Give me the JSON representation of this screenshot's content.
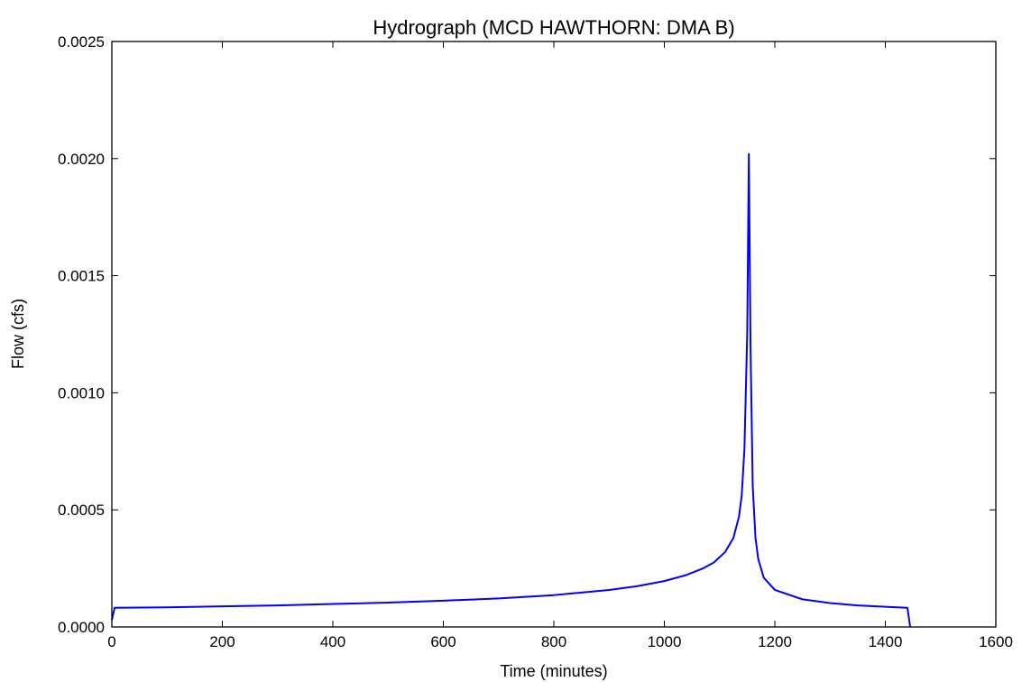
{
  "chart_data": {
    "type": "line",
    "title": "Hydrograph (MCD HAWTHORN: DMA B)",
    "xlabel": "Time (minutes)",
    "ylabel": "Flow (cfs)",
    "xlim": [
      0,
      1600
    ],
    "ylim": [
      0,
      0.0025
    ],
    "xticks": [
      0,
      200,
      400,
      600,
      800,
      1000,
      1200,
      1400,
      1600
    ],
    "yticks": [
      0.0,
      0.0005,
      0.001,
      0.0015,
      0.002,
      0.0025
    ],
    "xtick_labels": [
      "0",
      "200",
      "400",
      "600",
      "800",
      "1000",
      "1200",
      "1400",
      "1600"
    ],
    "ytick_labels": [
      "0.0000",
      "0.0005",
      "0.0010",
      "0.0015",
      "0.0020",
      "0.0025"
    ],
    "grid": false,
    "series": [
      {
        "color": "#0000ff",
        "x": [
          0,
          5,
          100,
          200,
          300,
          400,
          500,
          600,
          700,
          800,
          900,
          950,
          1000,
          1040,
          1070,
          1090,
          1110,
          1125,
          1135,
          1140,
          1145,
          1150,
          1153,
          1156,
          1160,
          1165,
          1170,
          1180,
          1200,
          1250,
          1300,
          1350,
          1400,
          1440,
          1445
        ],
        "y": [
          3e-05,
          8.2e-05,
          8.4e-05,
          8.8e-05,
          9.2e-05,
          9.8e-05,
          0.000104,
          0.000112,
          0.000122,
          0.000136,
          0.000158,
          0.000174,
          0.000196,
          0.000222,
          0.00025,
          0.000276,
          0.00032,
          0.00038,
          0.00047,
          0.00056,
          0.00076,
          0.00125,
          0.00202,
          0.0012,
          0.0006,
          0.00038,
          0.00029,
          0.00021,
          0.000158,
          0.000118,
          0.000102,
          9.2e-05,
          8.6e-05,
          8.2e-05,
          0.0
        ]
      }
    ]
  }
}
